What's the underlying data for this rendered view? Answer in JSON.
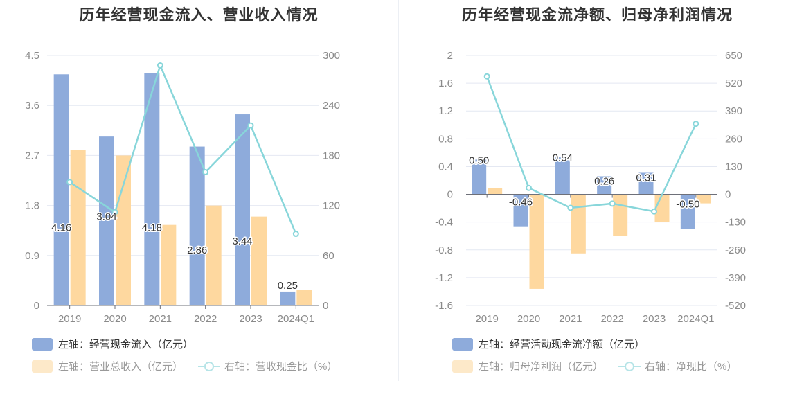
{
  "colors": {
    "blue": "#8eabdb",
    "orange": "#fed89f",
    "cyan": "#88d6da",
    "grid": "#e4e8f2",
    "axis_text": "#8a8a8a"
  },
  "chart_data": [
    {
      "type": "bar",
      "title": "历年经营现金流入、营业收入情况",
      "categories": [
        "2019",
        "2020",
        "2021",
        "2022",
        "2023",
        "2024Q1"
      ],
      "left_axis": {
        "ylim": [
          0,
          4.5
        ],
        "ticks": [
          "0",
          "0.9",
          "1.8",
          "2.7",
          "3.6",
          "4.5"
        ]
      },
      "right_axis": {
        "ylim": [
          0,
          300
        ],
        "ticks": [
          "0",
          "60",
          "120",
          "180",
          "240",
          "300"
        ]
      },
      "series": [
        {
          "name": "左轴：经营现金流入（亿元）",
          "kind": "bar",
          "axis": "left",
          "color": "#8eabdb",
          "values": [
            4.16,
            3.04,
            4.18,
            2.86,
            3.44,
            0.25
          ],
          "labels": [
            "4.16",
            "3.04",
            "4.18",
            "2.86",
            "3.44",
            "0.25"
          ]
        },
        {
          "name": "左轴：营业总收入（亿元）",
          "kind": "bar",
          "axis": "left",
          "color": "#fed89f",
          "values": [
            2.8,
            2.7,
            1.45,
            1.8,
            1.6,
            0.28
          ]
        },
        {
          "name": "右轴：营收现金比（%）",
          "kind": "line",
          "axis": "right",
          "color": "#88d6da",
          "values": [
            148,
            112,
            288,
            160,
            216,
            86
          ]
        }
      ]
    },
    {
      "type": "bar",
      "title": "历年经营现金流净额、归母净利润情况",
      "categories": [
        "2019",
        "2020",
        "2021",
        "2022",
        "2023",
        "2024Q1"
      ],
      "left_axis": {
        "ylim": [
          -1.6,
          2
        ],
        "ticks": [
          "-1.6",
          "-1.2",
          "-0.8",
          "-0.4",
          "0",
          "0.4",
          "0.8",
          "1.2",
          "1.6",
          "2"
        ]
      },
      "right_axis": {
        "ylim": [
          -520,
          650
        ],
        "ticks": [
          "-520",
          "-390",
          "-260",
          "-130",
          "0",
          "130",
          "260",
          "390",
          "520",
          "650"
        ]
      },
      "series": [
        {
          "name": "左轴：经营活动现金流净额（亿元）",
          "kind": "bar",
          "axis": "left",
          "color": "#8eabdb",
          "values": [
            0.5,
            -0.46,
            0.54,
            0.26,
            0.31,
            -0.5
          ],
          "labels": [
            "0.50",
            "-0.46",
            "0.54",
            "0.26",
            "0.31",
            "-0.50"
          ]
        },
        {
          "name": "左轴：归母净利润（亿元）",
          "kind": "bar",
          "axis": "left",
          "color": "#fed89f",
          "values": [
            0.09,
            -1.36,
            -0.85,
            -0.6,
            -0.4,
            -0.13
          ]
        },
        {
          "name": "右轴：净现比（%）",
          "kind": "line",
          "axis": "right",
          "color": "#88d6da",
          "values": [
            552,
            30,
            -63,
            -43,
            -80,
            330
          ]
        }
      ]
    }
  ]
}
